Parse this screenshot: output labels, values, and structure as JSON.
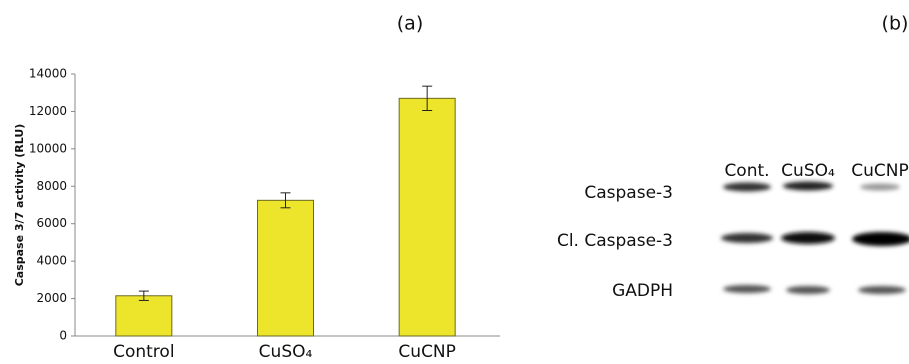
{
  "chart_data": {
    "type": "bar",
    "panel_label": "(a)",
    "y_label": "Caspase 3/7 activity (RLU)",
    "categories": [
      "Control",
      "CuSO₄",
      "CuCNP"
    ],
    "values": [
      2150,
      7250,
      12700
    ],
    "errors": [
      250,
      400,
      650
    ],
    "color": "#ede52c",
    "ylim": [
      0,
      14000
    ],
    "yticks": [
      0,
      2000,
      4000,
      6000,
      8000,
      10000,
      12000,
      14000
    ],
    "grid": false
  },
  "blot": {
    "panel_label": "(b)",
    "columns": [
      "Cont.",
      "CuSO₄",
      "CuCNP"
    ],
    "rows": [
      "Caspase-3",
      "Cl. Caspase-3",
      "GADPH"
    ]
  }
}
